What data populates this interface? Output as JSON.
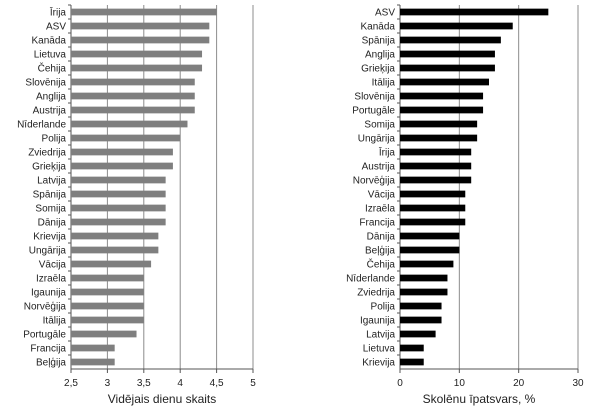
{
  "chart_data": [
    {
      "type": "bar",
      "orientation": "horizontal",
      "bar_color": "#7f7f7f",
      "xlabel": "Vidējais dienu skaits",
      "xlim": [
        2.5,
        5
      ],
      "xticks": [
        2.5,
        3,
        3.5,
        4,
        4.5,
        5
      ],
      "xtick_labels": [
        "2,5",
        "3",
        "3,5",
        "4",
        "4,5",
        "5"
      ],
      "grid": "vertical",
      "categories": [
        "Īrija",
        "ASV",
        "Kanāda",
        "Lietuva",
        "Čehija",
        "Slovēnija",
        "Anglija",
        "Austrija",
        "Nīderlande",
        "Polija",
        "Zviedrija",
        "Grieķija",
        "Latvija",
        "Spānija",
        "Somija",
        "Dānija",
        "Krievija",
        "Ungārija",
        "Vācija",
        "Izraēla",
        "Igaunija",
        "Norvēģija",
        "Itālija",
        "Portugāle",
        "Francija",
        "Beļģija"
      ],
      "values": [
        4.5,
        4.4,
        4.4,
        4.3,
        4.3,
        4.2,
        4.2,
        4.2,
        4.1,
        4.0,
        3.9,
        3.9,
        3.8,
        3.8,
        3.8,
        3.8,
        3.7,
        3.7,
        3.6,
        3.5,
        3.5,
        3.5,
        3.5,
        3.4,
        3.1,
        3.1
      ]
    },
    {
      "type": "bar",
      "orientation": "horizontal",
      "bar_color": "#000000",
      "xlabel": "Skolēnu īpatsvars, %",
      "xlim": [
        0,
        30
      ],
      "xticks": [
        0,
        10,
        20,
        30
      ],
      "xtick_labels": [
        "0",
        "10",
        "20",
        "30"
      ],
      "grid": "vertical",
      "categories": [
        "ASV",
        "Kanāda",
        "Spānija",
        "Anglija",
        "Grieķija",
        "Itālija",
        "Slovēnija",
        "Portugāle",
        "Somija",
        "Ungārija",
        "Īrija",
        "Austrija",
        "Norvēģija",
        "Vācija",
        "Izraēla",
        "Francija",
        "Dānija",
        "Beļģija",
        "Čehija",
        "Nīderlande",
        "Zviedrija",
        "Polija",
        "Igaunija",
        "Latvija",
        "Lietuva",
        "Krievija"
      ],
      "values": [
        25,
        19,
        17,
        16,
        16,
        15,
        14,
        14,
        13,
        13,
        12,
        12,
        12,
        11,
        11,
        11,
        10,
        10,
        9,
        8,
        8,
        7,
        7,
        6,
        4,
        4
      ]
    }
  ]
}
